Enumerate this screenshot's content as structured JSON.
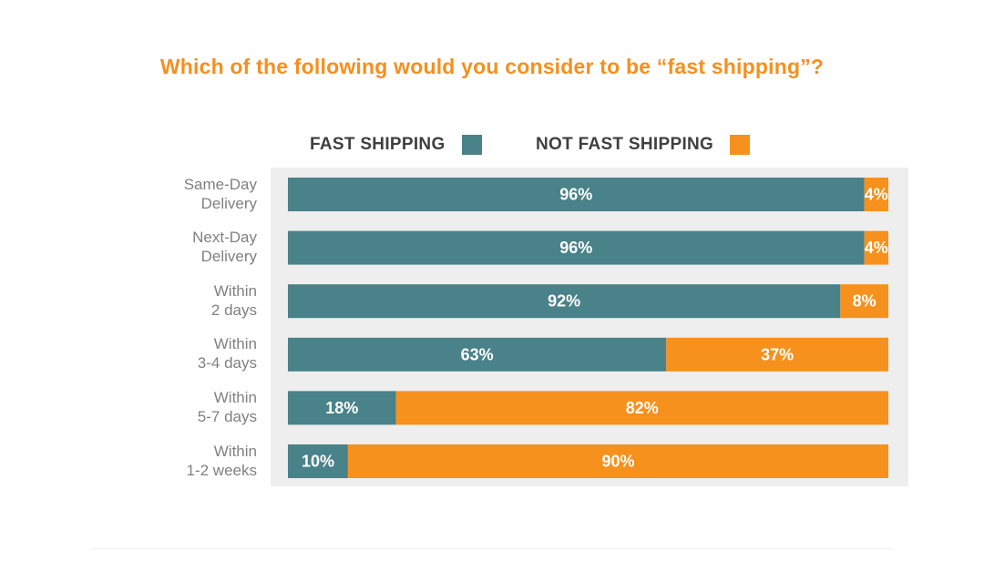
{
  "chart_data": {
    "type": "bar",
    "orientation": "horizontal",
    "stacked": true,
    "title": "Which of the following would you consider to be “fast shipping”?",
    "categories": [
      "Same-Day\nDelivery",
      "Next-Day\nDelivery",
      "Within\n2 days",
      "Within\n3-4 days",
      "Within\n5-7 days",
      "Within\n1-2 weeks"
    ],
    "series": [
      {
        "name": "FAST SHIPPING",
        "color": "#4a8289",
        "values": [
          96,
          96,
          92,
          63,
          18,
          10
        ]
      },
      {
        "name": "NOT FAST SHIPPING",
        "color": "#f7911d",
        "values": [
          4,
          4,
          8,
          37,
          82,
          90
        ]
      }
    ],
    "value_suffix": "%",
    "xlim": [
      0,
      100
    ],
    "legend_position": "top",
    "grid": false,
    "colors": {
      "title": "#f5901e",
      "panel_background": "#eeeeee",
      "category_label": "#808080",
      "legend_label": "#3f3f3f",
      "bar_label": "#ffffff"
    }
  }
}
